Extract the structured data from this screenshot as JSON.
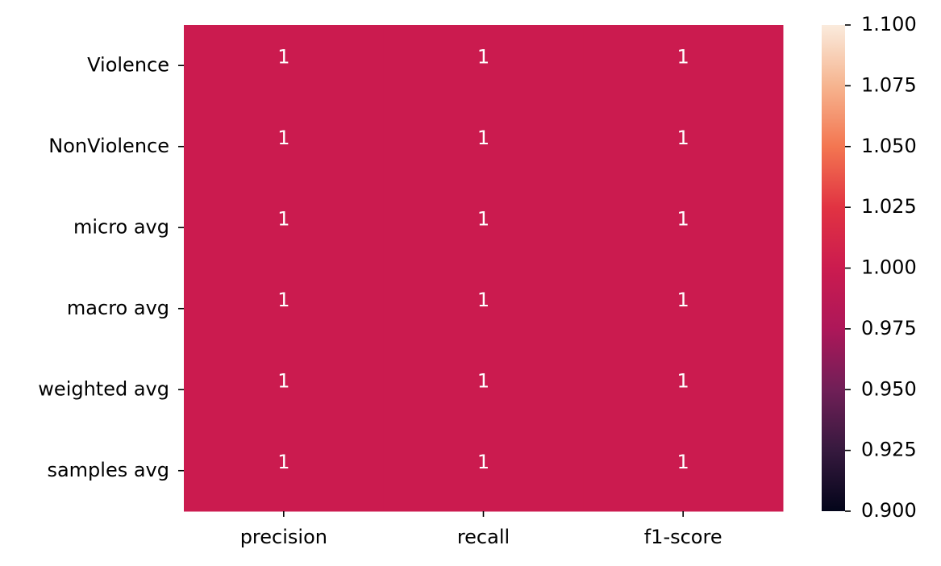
{
  "chart_data": {
    "type": "heatmap",
    "title": "",
    "xlabel": "",
    "ylabel": "",
    "columns": [
      "precision",
      "recall",
      "f1-score"
    ],
    "rows": [
      "Violence",
      "NonViolence",
      "micro avg",
      "macro avg",
      "weighted avg",
      "samples avg"
    ],
    "values": [
      [
        1,
        1,
        1
      ],
      [
        1,
        1,
        1
      ],
      [
        1,
        1,
        1
      ],
      [
        1,
        1,
        1
      ],
      [
        1,
        1,
        1
      ],
      [
        1,
        1,
        1
      ]
    ],
    "annotations": [
      [
        "1",
        "1",
        "1"
      ],
      [
        "1",
        "1",
        "1"
      ],
      [
        "1",
        "1",
        "1"
      ],
      [
        "1",
        "1",
        "1"
      ],
      [
        "1",
        "1",
        "1"
      ],
      [
        "1",
        "1",
        "1"
      ]
    ],
    "cell_color": "#cb1b4f",
    "annotation_color": "#ffffff",
    "colorbar": {
      "range": [
        0.9,
        1.1
      ],
      "ticks": [
        "0.900",
        "0.925",
        "0.950",
        "0.975",
        "1.000",
        "1.025",
        "1.050",
        "1.075",
        "1.100"
      ],
      "colormap": "rocket",
      "colormap_stops": [
        "#03051a",
        "#36193e",
        "#701f57",
        "#ad1759",
        "#cb1b4f",
        "#e13342",
        "#f37651",
        "#f6b48f",
        "#faebdd"
      ]
    },
    "grid": false,
    "legend": "colorbar-right"
  }
}
